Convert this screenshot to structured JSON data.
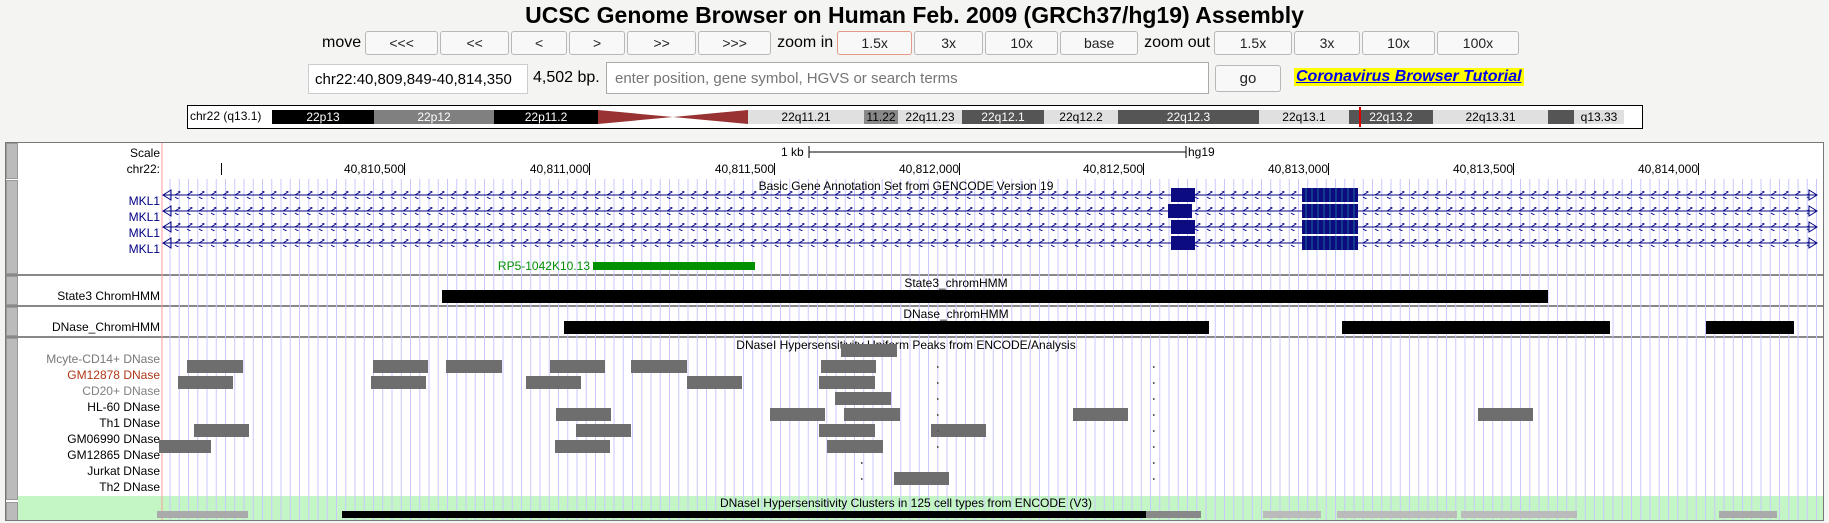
{
  "title": "UCSC Genome Browser on Human Feb. 2009 (GRCh37/hg19) Assembly",
  "nav": {
    "move_label": "move",
    "move_buttons": [
      "<<<",
      "<<",
      "<",
      ">",
      ">>",
      ">>>"
    ],
    "zoom_in_label": "zoom in",
    "zoom_in_buttons": [
      "1.5x",
      "3x",
      "10x",
      "base"
    ],
    "zoom_out_label": "zoom out",
    "zoom_out_buttons": [
      "1.5x",
      "3x",
      "10x",
      "100x"
    ]
  },
  "position": {
    "value": "chr22:40,809,849-40,814,350",
    "size": "4,502 bp.",
    "search_placeholder": "enter position, gene symbol, HGVS or search terms",
    "go_label": "go",
    "tutorial_link": "Coronavirus Browser Tutorial"
  },
  "ideogram": {
    "chrom_label": "chr22 (q13.1)",
    "bands": [
      {
        "name": "22p13",
        "color": "#000000",
        "text": "#ffffff"
      },
      {
        "name": "22p12",
        "color": "#808080",
        "text": "#ffffff"
      },
      {
        "name": "22p11.2",
        "color": "#000000",
        "text": "#ffffff"
      },
      {
        "name": "",
        "color": "#993333",
        "text": "#ffffff"
      },
      {
        "name": "22q11.21",
        "color": "#e0e0e0",
        "text": "#000000"
      },
      {
        "name": "11.22",
        "color": "#808080",
        "text": "#000000"
      },
      {
        "name": "22q11.23",
        "color": "#e0e0e0",
        "text": "#000000"
      },
      {
        "name": "22q12.1",
        "color": "#555555",
        "text": "#ffffff"
      },
      {
        "name": "22q12.2",
        "color": "#e0e0e0",
        "text": "#000000"
      },
      {
        "name": "22q12.3",
        "color": "#555555",
        "text": "#ffffff"
      },
      {
        "name": "22q13.1",
        "color": "#e0e0e0",
        "text": "#000000"
      },
      {
        "name": "22q13.2",
        "color": "#555555",
        "text": "#ffffff"
      },
      {
        "name": "22q13.31",
        "color": "#e0e0e0",
        "text": "#000000"
      },
      {
        "name": "",
        "color": "#555555",
        "text": "#ffffff"
      },
      {
        "name": "q13.33",
        "color": "#e0e0e0",
        "text": "#000000"
      }
    ]
  },
  "scale": {
    "label": "Scale",
    "bar_label": "1 kb",
    "assembly": "hg19",
    "chrom_label": "chr22:",
    "ticks": [
      "40,810,500",
      "40,811,000",
      "40,811,500",
      "40,812,000",
      "40,812,500",
      "40,813,000",
      "40,813,500",
      "40,814,000"
    ]
  },
  "tracks": {
    "gencode": {
      "title": "Basic Gene Annotation Set from GENCODE Version 19",
      "genes": [
        "MKL1",
        "MKL1",
        "MKL1",
        "MKL1"
      ],
      "extra_gene": "RP5-1042K10.13"
    },
    "state3": {
      "label": "State3 ChromHMM",
      "title": "State3_chromHMM"
    },
    "dnase_chromhmm": {
      "label": "DNase_ChromHMM",
      "title": "DNase_chromHMM"
    },
    "dnase_peaks": {
      "title": "DNaseI Hypersensitivity Uniform Peaks from ENCODE/Analysis",
      "rows": [
        {
          "label": "Mcyte-CD14+ DNase",
          "color": "#777777"
        },
        {
          "label": "GM12878 DNase",
          "color": "#b03818"
        },
        {
          "label": "CD20+ DNase",
          "color": "#808080"
        },
        {
          "label": "HL-60 DNase",
          "color": "#000000"
        },
        {
          "label": "Th1 DNase",
          "color": "#000000"
        },
        {
          "label": "GM06990 DNase",
          "color": "#000000"
        },
        {
          "label": "GM12865 DNase",
          "color": "#000000"
        },
        {
          "label": "Jurkat DNase",
          "color": "#000000"
        },
        {
          "label": "Th2 DNase",
          "color": "#000000"
        }
      ]
    },
    "clusters": {
      "title": "DNaseI Hypersensitivity Clusters in 125 cell types from ENCODE (V3)"
    }
  }
}
